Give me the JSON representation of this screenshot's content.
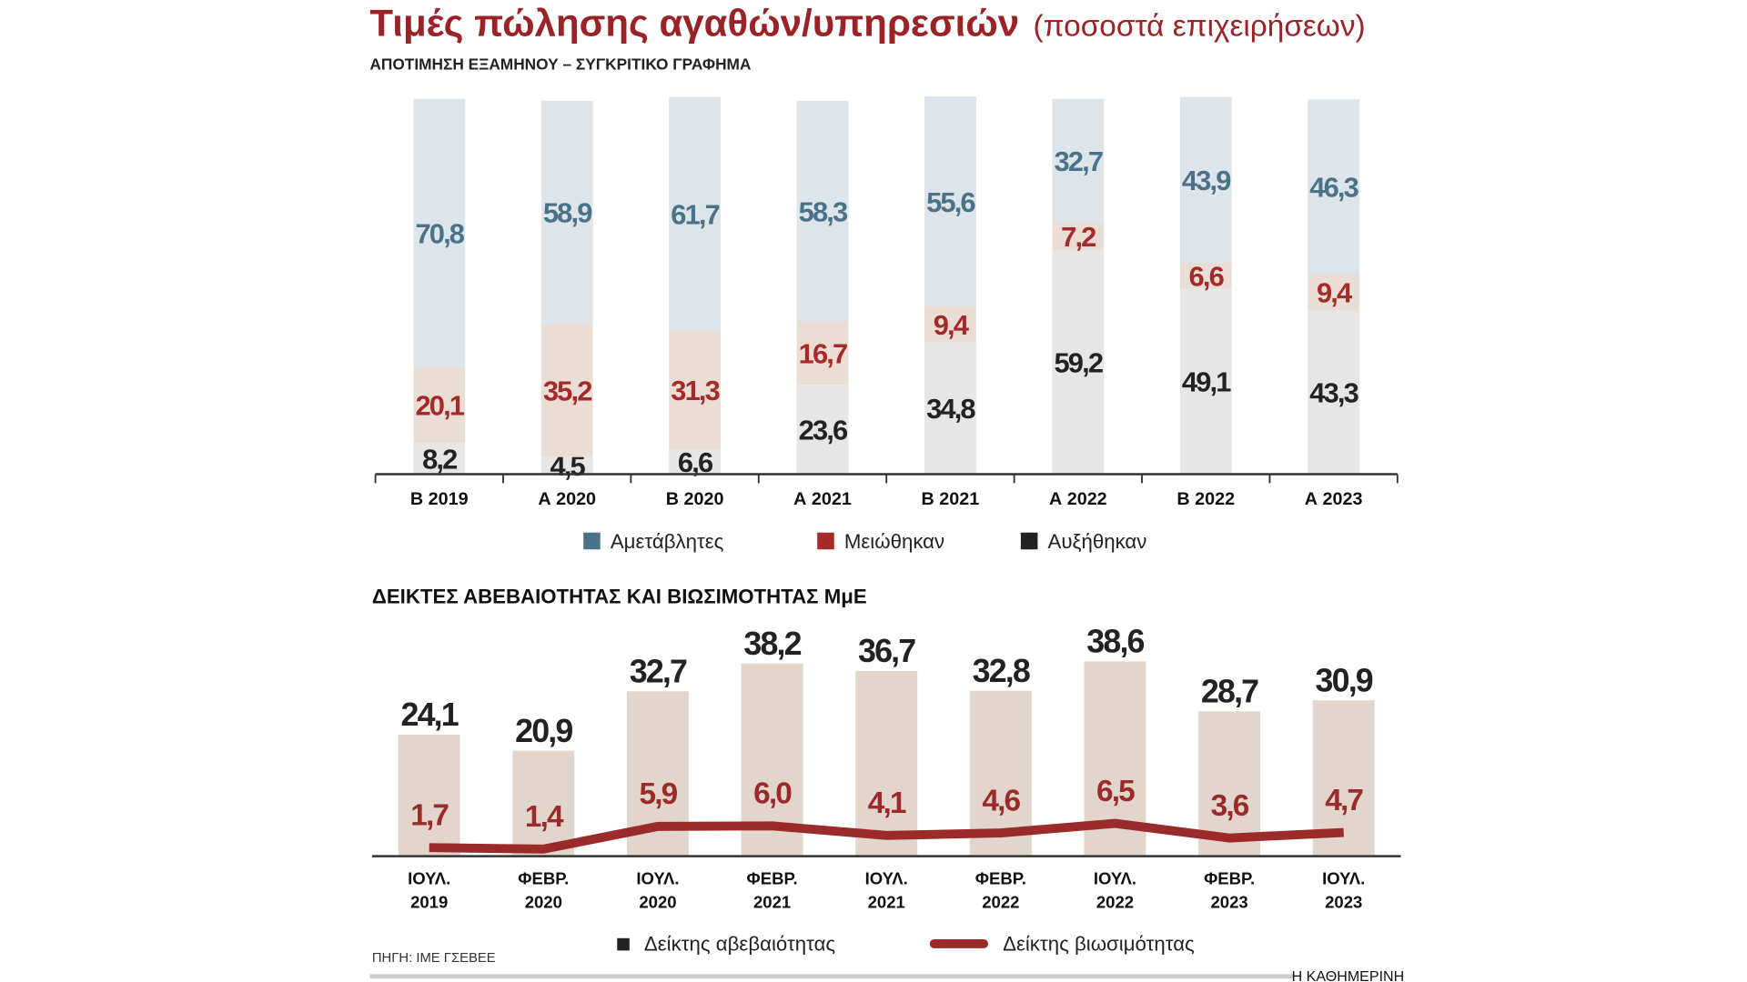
{
  "chart_data": [
    {
      "type": "stacked_bar",
      "title": "Τιμές πώλησης αγαθών/υπηρεσιών",
      "subtitle": "(ποσοστά επιχειρήσεων)",
      "caption": "ΑΠΟΤΙΜΗΣΗ ΕΞΑΜΗΝΟΥ – ΣΥΓΚΡΙΤΙΚΟ ΓΡΑΦΗΜΑ",
      "categories": [
        "Β 2019",
        "Α 2020",
        "Β 2020",
        "Α 2021",
        "Β 2021",
        "Α 2022",
        "Β 2022",
        "Α 2023"
      ],
      "ylim": [
        0,
        100
      ],
      "series": [
        {
          "name": "Αμετάβλητες",
          "color": "#4a7389",
          "fill": "#dde4ea",
          "values": [
            70.8,
            58.9,
            61.7,
            58.3,
            55.6,
            32.7,
            43.9,
            46.3
          ],
          "value_labels": [
            "70,8",
            "58,9",
            "61,7",
            "58,3",
            "55,6",
            "32,7",
            "43,9",
            "46,3"
          ]
        },
        {
          "name": "Μειώθηκαν",
          "color": "#a52a2a",
          "fill": "#eaddd4",
          "values": [
            20.1,
            35.2,
            31.3,
            16.7,
            9.4,
            7.2,
            6.6,
            9.4
          ],
          "value_labels": [
            "20,1",
            "35,2",
            "31,3",
            "16,7",
            "9,4",
            "7,2",
            "6,6",
            "9,4"
          ]
        },
        {
          "name": "Αυξήθηκαν",
          "color": "#222222",
          "fill": "#e6e6e6",
          "values": [
            8.2,
            4.5,
            6.6,
            23.6,
            34.8,
            59.2,
            49.1,
            43.3
          ],
          "value_labels": [
            "8,2",
            "4,5",
            "6,6",
            "23,6",
            "34,8",
            "59,2",
            "49,1",
            "43,3"
          ]
        }
      ]
    },
    {
      "type": "bar_line",
      "title": "ΔΕΙΚΤΕΣ ΑΒΕΒΑΙΟΤΗΤΑΣ ΚΑΙ ΒΙΩΣΙΜΟΤΗΤΑΣ ΜμΕ",
      "categories": [
        [
          "ΙΟΥΛ.",
          "2019"
        ],
        [
          "ΦΕΒΡ.",
          "2020"
        ],
        [
          "ΙΟΥΛ.",
          "2020"
        ],
        [
          "ΦΕΒΡ.",
          "2021"
        ],
        [
          "ΙΟΥΛ.",
          "2021"
        ],
        [
          "ΦΕΒΡ.",
          "2022"
        ],
        [
          "ΙΟΥΛ.",
          "2022"
        ],
        [
          "ΦΕΒΡ.",
          "2023"
        ],
        [
          "ΙΟΥΛ.",
          "2023"
        ]
      ],
      "ylim": [
        0,
        45
      ],
      "series": [
        {
          "name": "Δείκτης αβεβαιότητας",
          "kind": "bar",
          "color": "#222222",
          "fill": "#e2d6cc",
          "values": [
            24.1,
            20.9,
            32.7,
            38.2,
            36.7,
            32.8,
            38.6,
            28.7,
            30.9
          ],
          "value_labels": [
            "24,1",
            "20,9",
            "32,7",
            "38,2",
            "36,7",
            "32,8",
            "38,6",
            "28,7",
            "30,9"
          ]
        },
        {
          "name": "Δείκτης βιωσιμότητας",
          "kind": "line",
          "color": "#9b2a2a",
          "values": [
            1.7,
            1.4,
            5.9,
            6.0,
            4.1,
            4.6,
            6.5,
            3.6,
            4.7
          ],
          "value_labels": [
            "1,7",
            "1,4",
            "5,9",
            "6,0",
            "4,1",
            "4,6",
            "6,5",
            "3,6",
            "4,7"
          ]
        }
      ]
    }
  ],
  "source": "ΠΗΓΗ: ΙΜΕ ΓΣΕΒΕΕ",
  "brand": "Η ΚΑΘΗΜΕΡΙΝΗ"
}
